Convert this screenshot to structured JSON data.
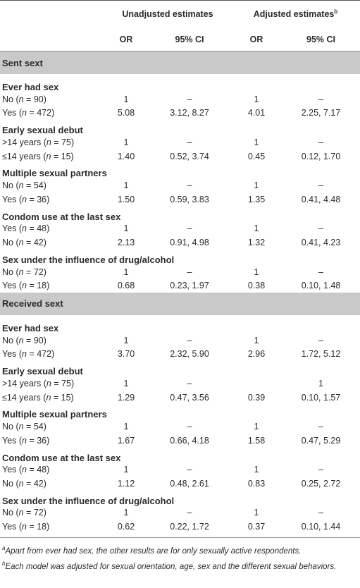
{
  "header": {
    "unadjusted": "Unadjusted estimates",
    "adjusted": "Adjusted estimates",
    "adjusted_sup": "b",
    "or": "OR",
    "ci": "95% CI"
  },
  "sections": [
    {
      "title": "Sent sext",
      "groups": [
        {
          "title": "Ever had sex",
          "rows": [
            {
              "label": "No (n = 90)",
              "u_or": "1",
              "u_ci": "–",
              "a_or": "1",
              "a_ci": "–"
            },
            {
              "label": "Yes (n = 472)",
              "u_or": "5.08",
              "u_ci": "3.12, 8.27",
              "a_or": "4.01",
              "a_ci": "2.25, 7.17"
            }
          ]
        },
        {
          "title": "Early sexual debut",
          "rows": [
            {
              "label": ">14 years (n = 75)",
              "u_or": "1",
              "u_ci": "–",
              "a_or": "1",
              "a_ci": "–"
            },
            {
              "label": "≤14 years (n = 15)",
              "u_or": "1.40",
              "u_ci": "0.52, 3.74",
              "a_or": "0.45",
              "a_ci": "0.12, 1.70"
            }
          ]
        },
        {
          "title": "Multiple sexual partners",
          "rows": [
            {
              "label": "No (n = 54)",
              "u_or": "1",
              "u_ci": "–",
              "a_or": "1",
              "a_ci": "–"
            },
            {
              "label": "Yes (n = 36)",
              "u_or": "1.50",
              "u_ci": "0.59, 3.83",
              "a_or": "1.35",
              "a_ci": "0.41, 4.48"
            }
          ]
        },
        {
          "title": "Condom use at the last sex",
          "rows": [
            {
              "label": "Yes (n = 48)",
              "u_or": "1",
              "u_ci": "–",
              "a_or": "1",
              "a_ci": "–"
            },
            {
              "label": "No (n = 42)",
              "u_or": "2.13",
              "u_ci": "0.91, 4.98",
              "a_or": "1.32",
              "a_ci": "0.41, 4.23"
            }
          ]
        },
        {
          "title": "Sex under the influence of drug/alcohol",
          "rows": [
            {
              "label": "No (n = 72)",
              "u_or": "1",
              "u_ci": "–",
              "a_or": "1",
              "a_ci": "–"
            },
            {
              "label": "Yes (n = 18)",
              "u_or": "0.68",
              "u_ci": "0.23, 1.97",
              "a_or": "0.38",
              "a_ci": "0.10, 1.48"
            }
          ]
        }
      ]
    },
    {
      "title": "Received sext",
      "groups": [
        {
          "title": "Ever had sex",
          "rows": [
            {
              "label": "No (n = 90)",
              "u_or": "1",
              "u_ci": "–",
              "a_or": "1",
              "a_ci": "–"
            },
            {
              "label": "Yes (n = 472)",
              "u_or": "3.70",
              "u_ci": "2.32, 5.90",
              "a_or": "2.96",
              "a_ci": "1.72, 5.12"
            }
          ]
        },
        {
          "title": "Early sexual debut",
          "rows": [
            {
              "label": ">14 years (n = 75)",
              "u_or": "1",
              "u_ci": "–",
              "a_or": "",
              "a_ci": "1"
            },
            {
              "label": "≤14 years (n = 15)",
              "u_or": "1.29",
              "u_ci": "0.47, 3.56",
              "a_or": "0.39",
              "a_ci": "0.10, 1.57"
            }
          ]
        },
        {
          "title": "Multiple sexual partners",
          "rows": [
            {
              "label": "No (n = 54)",
              "u_or": "1",
              "u_ci": "–",
              "a_or": "1",
              "a_ci": "–"
            },
            {
              "label": "Yes (n = 36)",
              "u_or": "1.67",
              "u_ci": "0.66, 4.18",
              "a_or": "1.58",
              "a_ci": "0.47, 5.29"
            }
          ]
        },
        {
          "title": "Condom use at the last sex",
          "rows": [
            {
              "label": "Yes (n = 48)",
              "u_or": "1",
              "u_ci": "–",
              "a_or": "1",
              "a_ci": "–"
            },
            {
              "label": "No (n = 42)",
              "u_or": "1.12",
              "u_ci": "0.48, 2.61",
              "a_or": "0.83",
              "a_ci": "0.25, 2.72"
            }
          ]
        },
        {
          "title": "Sex under the influence of drug/alcohol",
          "rows": [
            {
              "label": "No (n = 72)",
              "u_or": "1",
              "u_ci": "–",
              "a_or": "1",
              "a_ci": "–"
            },
            {
              "label": "Yes (n = 18)",
              "u_or": "0.62",
              "u_ci": "0.22, 1.72",
              "a_or": "0.37",
              "a_ci": "0.10, 1.44"
            }
          ]
        }
      ]
    }
  ],
  "notes": [
    {
      "sup": "a",
      "text": "Apart from ever had sex, the other results are for only sexually active respondents."
    },
    {
      "sup": "b",
      "text": "Each model was adjusted for sexual orientation, age, sex and the different sexual behaviors."
    }
  ]
}
